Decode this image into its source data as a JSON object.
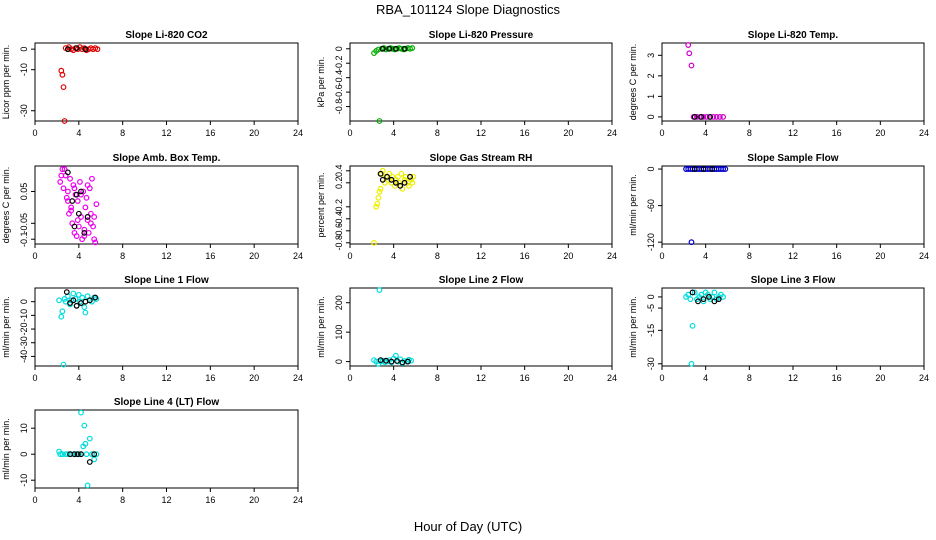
{
  "figure": {
    "title": "RBA_101124  Slope Diagnostics",
    "xlabel": "Hour of Day (UTC)"
  },
  "chart_data": [
    {
      "type": "scatter",
      "title": "Slope Li-820 CO2",
      "ylabel": "Licor ppm per min.",
      "xlim": [
        0,
        24
      ],
      "xticks": [
        0,
        4,
        8,
        12,
        16,
        20,
        24
      ],
      "ylim": [
        -35,
        3
      ],
      "yticks": [
        0,
        -10,
        -30
      ],
      "color": "#dd0000",
      "series": [
        {
          "name": "points",
          "x": [
            2.4,
            2.5,
            2.6,
            2.7,
            2.8,
            3.0,
            3.1,
            3.3,
            3.5,
            3.7,
            3.9,
            4.1,
            4.3,
            4.5,
            4.7,
            4.9,
            5.1,
            5.3,
            5.5,
            5.7
          ],
          "y": [
            -10.5,
            -12.5,
            -18.5,
            -35,
            0.5,
            0,
            1,
            0,
            -0.5,
            0.5,
            0,
            1,
            0,
            0.5,
            -0.5,
            0,
            0.5,
            0,
            0.5,
            0
          ]
        },
        {
          "name": "black",
          "x": [
            3.0,
            3.8,
            4.6
          ],
          "y": [
            0,
            0.5,
            0
          ]
        }
      ]
    },
    {
      "type": "scatter",
      "title": "Slope Li-820 Pressure",
      "ylabel": "kPa per min.",
      "xlim": [
        0,
        24
      ],
      "xticks": [
        0,
        4,
        8,
        12,
        16,
        20,
        24
      ],
      "ylim": [
        -1.0,
        0.08
      ],
      "yticks": [
        0,
        -0.2,
        -0.4,
        -0.6,
        -0.8
      ],
      "color": "#00aa00",
      "series": [
        {
          "name": "points",
          "x": [
            2.2,
            2.4,
            2.6,
            2.7,
            2.9,
            3.1,
            3.3,
            3.5,
            3.7,
            3.9,
            4.1,
            4.3,
            4.5,
            4.7,
            4.9,
            5.1,
            5.3,
            5.5,
            5.7
          ],
          "y": [
            -0.06,
            -0.03,
            -0.01,
            -1.0,
            0,
            0.01,
            -0.01,
            0,
            0.01,
            0,
            -0.01,
            0,
            0.01,
            0,
            -0.01,
            0,
            0.01,
            0,
            0.01
          ]
        },
        {
          "name": "black",
          "x": [
            3.0,
            3.6,
            4.2,
            5.0
          ],
          "y": [
            0,
            0,
            0,
            0
          ]
        }
      ]
    },
    {
      "type": "scatter",
      "title": "Slope Li-820 Temp.",
      "ylabel": "degrees C per min.",
      "xlim": [
        0,
        24
      ],
      "xticks": [
        0,
        4,
        8,
        12,
        16,
        20,
        24
      ],
      "ylim": [
        -0.2,
        3.6
      ],
      "yticks": [
        0,
        1,
        2,
        3
      ],
      "color": "#cc00cc",
      "series": [
        {
          "name": "points",
          "x": [
            2.4,
            2.5,
            2.7,
            2.9,
            3.2,
            3.5,
            3.8,
            4.1,
            4.4,
            4.7,
            5.0,
            5.3,
            5.6
          ],
          "y": [
            3.5,
            3.1,
            2.5,
            0,
            0,
            0,
            0,
            0,
            0,
            0,
            0,
            0,
            0
          ]
        },
        {
          "name": "black",
          "x": [
            3.0,
            3.6,
            4.4
          ],
          "y": [
            0,
            0,
            0
          ]
        }
      ]
    },
    {
      "type": "scatter",
      "title": "Slope Amb. Box Temp.",
      "ylabel": "degrees C per min.",
      "xlim": [
        0,
        24
      ],
      "xticks": [
        0,
        4,
        8,
        12,
        16,
        20,
        24
      ],
      "ylim": [
        -0.115,
        0.13
      ],
      "yticks": [
        0.05,
        -0.05,
        -0.1
      ],
      "color": "#ee00ee",
      "series": [
        {
          "name": "points",
          "x": [
            2.3,
            2.5,
            2.6,
            2.8,
            2.9,
            3.0,
            3.1,
            3.2,
            3.3,
            3.4,
            3.5,
            3.6,
            3.7,
            3.8,
            3.9,
            4.0,
            4.1,
            4.2,
            4.3,
            4.4,
            4.5,
            4.6,
            4.7,
            4.8,
            4.9,
            5.0,
            5.1,
            5.2,
            5.3,
            5.4,
            5.5,
            5.6,
            2.4,
            2.7,
            3.0,
            3.3,
            3.6,
            3.9,
            4.2,
            4.5,
            4.8,
            5.1,
            5.4
          ],
          "y": [
            0.08,
            0.12,
            0.06,
            0.1,
            0.03,
            0.05,
            -0.02,
            0.09,
            0.0,
            -0.05,
            0.07,
            -0.08,
            0.04,
            -0.09,
            0.02,
            -0.06,
            0.08,
            -0.03,
            -0.1,
            0.05,
            -0.07,
            0.0,
            0.03,
            -0.04,
            -0.08,
            0.06,
            -0.02,
            0.09,
            -0.06,
            -0.1,
            -0.11,
            0.01,
            0.1,
            0.12,
            0.02,
            -0.01,
            0.06,
            -0.04,
            0.04,
            -0.09,
            0.07,
            -0.05,
            -0.03
          ]
        },
        {
          "name": "black",
          "x": [
            3.0,
            3.4,
            3.6,
            3.8,
            4.0,
            4.2,
            4.5,
            4.8
          ],
          "y": [
            0.11,
            0.02,
            -0.06,
            0.04,
            -0.02,
            0.05,
            -0.08,
            -0.03
          ]
        }
      ]
    },
    {
      "type": "scatter",
      "title": "Slope Gas Stream RH",
      "ylabel": "percent per min.",
      "xlim": [
        0,
        24
      ],
      "xticks": [
        0,
        4,
        8,
        12,
        16,
        20,
        24
      ],
      "ylim": [
        -0.82,
        0.48
      ],
      "yticks": [
        0.4,
        0.2,
        -0.2,
        -0.4,
        -0.6,
        -0.8
      ],
      "color": "#eeee00",
      "series": [
        {
          "name": "points",
          "x": [
            2.2,
            2.4,
            2.5,
            2.6,
            2.7,
            2.8,
            2.9,
            3.0,
            3.2,
            3.3,
            3.5,
            3.6,
            3.8,
            3.9,
            4.1,
            4.2,
            4.4,
            4.5,
            4.7,
            4.8,
            5.0,
            5.1,
            5.3,
            5.4,
            5.5,
            5.6,
            5.7,
            5.8
          ],
          "y": [
            -0.8,
            -0.2,
            -0.15,
            -0.05,
            0.05,
            0.1,
            0.35,
            0.4,
            0.2,
            0.3,
            0.25,
            0.35,
            0.2,
            0.3,
            0.15,
            0.25,
            0.3,
            0.2,
            0.35,
            0.1,
            0.25,
            0.3,
            0.2,
            0.15,
            0.3,
            0.25,
            0.2,
            0.3
          ]
        },
        {
          "name": "black",
          "x": [
            2.8,
            3.0,
            3.4,
            3.8,
            4.2,
            4.6,
            5.0,
            5.5
          ],
          "y": [
            0.35,
            0.25,
            0.3,
            0.25,
            0.2,
            0.15,
            0.2,
            0.3
          ]
        }
      ]
    },
    {
      "type": "scatter",
      "title": "Slope Sample Flow",
      "ylabel": "ml/min per min.",
      "xlim": [
        0,
        24
      ],
      "xticks": [
        0,
        4,
        8,
        12,
        16,
        20,
        24
      ],
      "ylim": [
        -123,
        5
      ],
      "yticks": [
        0,
        -60,
        -120
      ],
      "color": "#0000cc",
      "series": [
        {
          "name": "points",
          "x": [
            2.2,
            2.4,
            2.6,
            2.7,
            2.8,
            3.0,
            3.2,
            3.4,
            3.6,
            3.8,
            4.0,
            4.2,
            4.4,
            4.6,
            4.8,
            5.0,
            5.2,
            5.4,
            5.6,
            5.8
          ],
          "y": [
            0,
            0,
            0,
            -120,
            0,
            0,
            0,
            0,
            0,
            0,
            0,
            0,
            0,
            0,
            0,
            0,
            0,
            0,
            0,
            0
          ]
        },
        {
          "name": "black",
          "x": [
            3.0,
            3.8,
            4.6
          ],
          "y": [
            0,
            0,
            0
          ]
        }
      ]
    },
    {
      "type": "scatter",
      "title": "Slope Line 1 Flow",
      "ylabel": "ml/min per min.",
      "xlim": [
        0,
        24
      ],
      "xticks": [
        0,
        4,
        8,
        12,
        16,
        20,
        24
      ],
      "ylim": [
        -47,
        10
      ],
      "yticks": [
        0,
        -10,
        -20,
        -30,
        -40
      ],
      "color": "#00dddd",
      "series": [
        {
          "name": "points",
          "x": [
            2.2,
            2.4,
            2.5,
            2.6,
            2.7,
            2.8,
            3.0,
            3.2,
            3.3,
            3.5,
            3.7,
            3.8,
            4.0,
            4.1,
            4.3,
            4.5,
            4.6,
            4.8,
            5.0,
            5.2,
            5.4,
            5.6
          ],
          "y": [
            1,
            -11,
            -7,
            -46,
            2,
            0,
            4,
            -2,
            1,
            6,
            2,
            -3,
            5,
            0,
            3,
            -4,
            -8,
            4,
            1,
            0,
            3,
            2
          ]
        },
        {
          "name": "black",
          "x": [
            2.9,
            3.2,
            3.5,
            3.8,
            4.2,
            4.6,
            5.0,
            5.5
          ],
          "y": [
            7,
            -1,
            1,
            -3,
            -1,
            0,
            1,
            3
          ]
        }
      ]
    },
    {
      "type": "scatter",
      "title": "Slope Line 2 Flow",
      "ylabel": "ml/min per min.",
      "xlim": [
        0,
        24
      ],
      "xticks": [
        0,
        4,
        8,
        12,
        16,
        20,
        24
      ],
      "ylim": [
        -15,
        250
      ],
      "yticks": [
        0,
        100,
        200
      ],
      "color": "#00dddd",
      "series": [
        {
          "name": "points",
          "x": [
            2.2,
            2.4,
            2.6,
            2.7,
            2.8,
            3.0,
            3.2,
            3.4,
            3.6,
            3.8,
            4.0,
            4.2,
            4.4,
            4.6,
            4.8,
            5.0,
            5.2,
            5.4,
            5.6
          ],
          "y": [
            5,
            0,
            -8,
            243,
            0,
            3,
            -2,
            0,
            5,
            -3,
            10,
            20,
            0,
            8,
            -5,
            2,
            0,
            6,
            3
          ]
        },
        {
          "name": "black",
          "x": [
            2.8,
            3.3,
            3.8,
            4.3,
            4.8,
            5.3
          ],
          "y": [
            5,
            3,
            0,
            2,
            -3,
            0
          ]
        }
      ]
    },
    {
      "type": "scatter",
      "title": "Slope Line 3 Flow",
      "ylabel": "ml/min per min.",
      "xlim": [
        0,
        24
      ],
      "xticks": [
        0,
        4,
        8,
        12,
        16,
        20,
        24
      ],
      "ylim": [
        -31,
        4
      ],
      "yticks": [
        0,
        -5,
        -15,
        -30
      ],
      "color": "#00dddd",
      "series": [
        {
          "name": "points",
          "x": [
            2.2,
            2.4,
            2.6,
            2.7,
            2.8,
            3.0,
            3.2,
            3.4,
            3.6,
            3.8,
            4.0,
            4.2,
            4.4,
            4.6,
            4.8,
            5.0,
            5.2,
            5.4,
            5.6
          ],
          "y": [
            0,
            1,
            -1,
            -30,
            -13,
            2,
            -1,
            0,
            1,
            -2,
            2,
            1,
            -1,
            0,
            2,
            -1,
            0,
            1,
            0
          ]
        },
        {
          "name": "black",
          "x": [
            2.8,
            3.3,
            3.8,
            4.3,
            4.8,
            5.2
          ],
          "y": [
            2,
            -2,
            -1,
            0,
            -2,
            -1
          ]
        }
      ]
    },
    {
      "type": "scatter",
      "title": "Slope Line 4 (LT) Flow",
      "ylabel": "ml/min per min.",
      "xlim": [
        0,
        24
      ],
      "xticks": [
        0,
        4,
        8,
        12,
        16,
        20,
        24
      ],
      "ylim": [
        -13,
        17
      ],
      "yticks": [
        -10,
        0,
        10
      ],
      "color": "#00dddd",
      "series": [
        {
          "name": "points",
          "x": [
            2.2,
            2.3,
            2.5,
            2.8,
            3.0,
            3.3,
            3.6,
            3.8,
            4.0,
            4.2,
            4.4,
            4.5,
            4.6,
            4.8,
            5.0,
            5.2,
            5.4,
            5.6,
            4.2,
            4.7
          ],
          "y": [
            1,
            0,
            0,
            0,
            0,
            0,
            0,
            0,
            0,
            16,
            3,
            11,
            4,
            -12,
            6,
            0,
            -2,
            0,
            0,
            0
          ]
        },
        {
          "name": "black",
          "x": [
            3.2,
            3.6,
            3.9,
            4.2,
            5.0,
            5.4
          ],
          "y": [
            0,
            0,
            0,
            0,
            -3,
            0
          ]
        }
      ]
    }
  ]
}
